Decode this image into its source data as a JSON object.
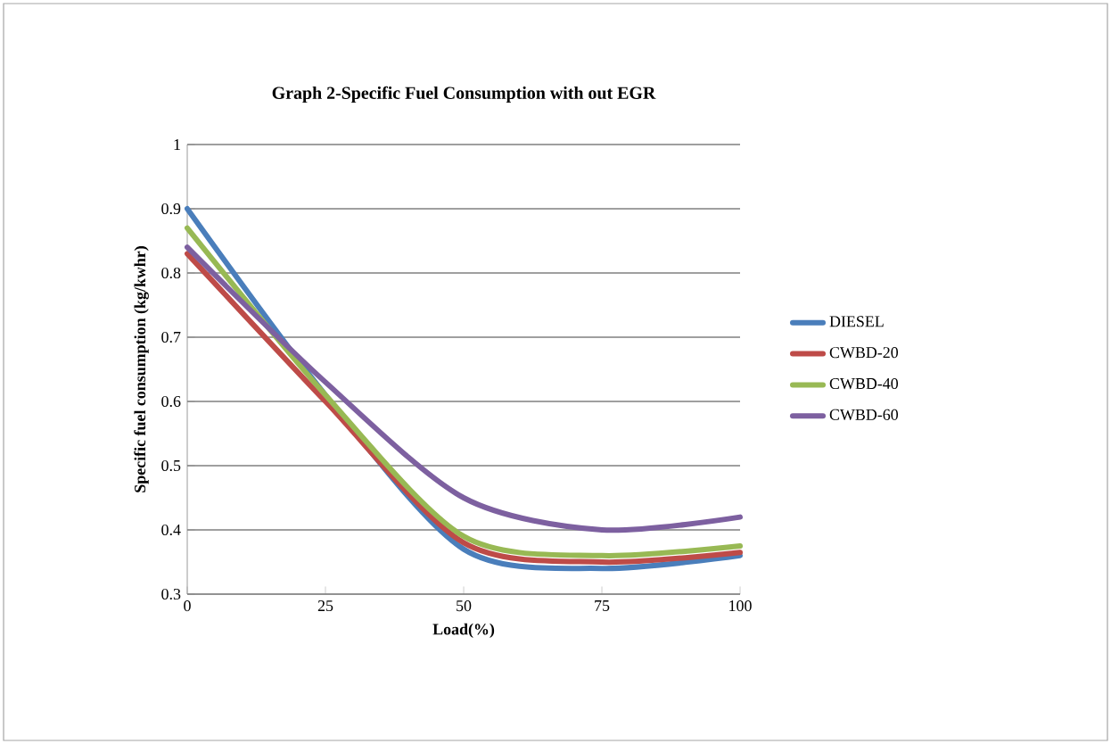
{
  "chart_data": {
    "type": "line",
    "title": "Graph 2-Specific Fuel Consumption with out EGR",
    "xlabel": "Load(%)",
    "ylabel": "Specific fuel consumption (kg/kwhr)",
    "x": [
      0,
      25,
      50,
      75,
      100
    ],
    "xlim": [
      0,
      100
    ],
    "xticks": [
      0,
      25,
      50,
      75,
      100
    ],
    "ylim": [
      0.3,
      1
    ],
    "yticks": [
      0.3,
      0.4,
      0.5,
      0.6,
      0.7,
      0.8,
      0.9,
      1
    ],
    "grid": "y",
    "legend": "right",
    "marker": "none",
    "line_style": "solid",
    "series": [
      {
        "name": "DIESEL",
        "color": "#4a7ebb",
        "values": [
          0.9,
          0.61,
          0.37,
          0.34,
          0.36
        ]
      },
      {
        "name": "CWBD-20",
        "color": "#be4b48",
        "values": [
          0.83,
          0.6,
          0.38,
          0.35,
          0.365
        ]
      },
      {
        "name": "CWBD-40",
        "color": "#98b954",
        "values": [
          0.87,
          0.61,
          0.39,
          0.36,
          0.375
        ]
      },
      {
        "name": "CWBD-60",
        "color": "#7d60a0",
        "values": [
          0.84,
          0.63,
          0.45,
          0.4,
          0.42
        ]
      }
    ]
  }
}
